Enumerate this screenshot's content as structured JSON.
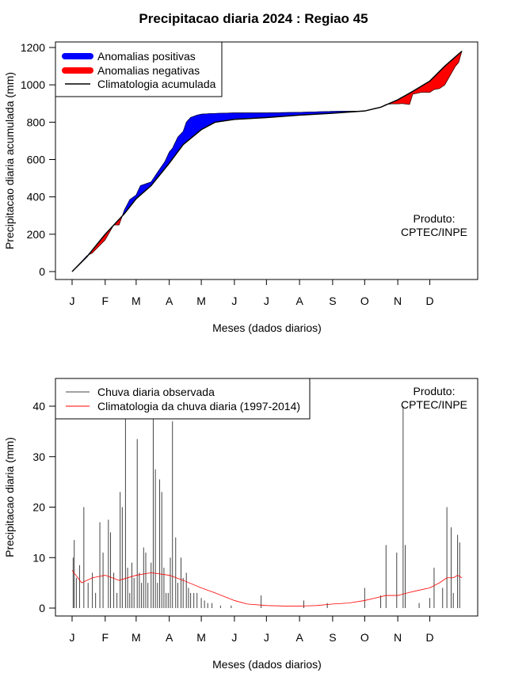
{
  "title": "Precipitacao diaria 2024 : Regiao 45",
  "chart_data": [
    {
      "type": "area",
      "ylabel": "Precipitacao diaria acumulada (mm)",
      "xlabel": "Meses (dados diarios)",
      "ylim": [
        0,
        1200
      ],
      "yticks": [
        0,
        200,
        400,
        600,
        800,
        1000,
        1200
      ],
      "xlim": [
        1,
        366
      ],
      "month_ticks": [
        "J",
        "F",
        "M",
        "A",
        "M",
        "J",
        "J",
        "A",
        "S",
        "O",
        "N",
        "D"
      ],
      "month_days": [
        1,
        32,
        61,
        92,
        122,
        153,
        183,
        214,
        245,
        275,
        306,
        336
      ],
      "annotation": [
        "Produto:",
        "CPTEC/INPE"
      ],
      "legend": {
        "placement": "top-left",
        "entries": [
          {
            "label": "Anomalias positivas",
            "color": "#0000ff"
          },
          {
            "label": "Anomalias negativas",
            "color": "#ff0000"
          },
          {
            "label": "Climatologia acumulada",
            "color": "#000000"
          }
        ]
      },
      "colors": {
        "positive": "#0000ff",
        "negative": "#ff0000",
        "line": "#000000"
      },
      "climatology": {
        "x": [
          1,
          15,
          32,
          50,
          61,
          75,
          92,
          105,
          122,
          135,
          153,
          183,
          214,
          245,
          275,
          290,
          306,
          320,
          336,
          350,
          366
        ],
        "y": [
          0,
          80,
          200,
          310,
          390,
          460,
          580,
          680,
          760,
          800,
          815,
          825,
          838,
          848,
          860,
          880,
          920,
          965,
          1020,
          1100,
          1180
        ]
      },
      "observed": {
        "x": [
          1,
          15,
          20,
          32,
          40,
          45,
          50,
          55,
          61,
          65,
          70,
          75,
          82,
          88,
          92,
          95,
          100,
          105,
          108,
          112,
          118,
          122,
          130,
          140,
          153,
          183,
          214,
          245,
          275,
          285,
          290,
          295,
          300,
          306,
          310,
          317,
          320,
          328,
          336,
          340,
          345,
          350,
          355,
          360,
          363,
          366
        ],
        "y": [
          0,
          85,
          100,
          170,
          250,
          250,
          330,
          385,
          410,
          460,
          470,
          480,
          540,
          590,
          640,
          660,
          720,
          750,
          800,
          825,
          838,
          843,
          846,
          848,
          850,
          850,
          853,
          858,
          860,
          875,
          880,
          895,
          898,
          898,
          900,
          895,
          950,
          960,
          960,
          975,
          980,
          1000,
          1050,
          1100,
          1120,
          1180
        ]
      }
    },
    {
      "type": "bar",
      "ylabel": "Precipitacao diaria (mm)",
      "xlabel": "Meses (dados diarios)",
      "ylim": [
        0,
        45
      ],
      "yticks": [
        0,
        10,
        20,
        30,
        40
      ],
      "xlim": [
        1,
        366
      ],
      "month_ticks": [
        "J",
        "F",
        "M",
        "A",
        "M",
        "J",
        "J",
        "A",
        "S",
        "O",
        "N",
        "D"
      ],
      "month_days": [
        1,
        32,
        61,
        92,
        122,
        153,
        183,
        214,
        245,
        275,
        306,
        336
      ],
      "annotation": [
        "Produto:",
        "CPTEC/INPE"
      ],
      "legend": {
        "placement": "top-left",
        "entries": [
          {
            "label": "Chuva diaria observada",
            "color": "#444444"
          },
          {
            "label": "Climatologia da chuva diaria (1997-2014)",
            "color": "#ff0000"
          }
        ]
      },
      "observed_bars": {
        "x": [
          2,
          3,
          5,
          8,
          12,
          16,
          20,
          23,
          27,
          30,
          35,
          37,
          40,
          43,
          46,
          48,
          51,
          53,
          55,
          57,
          59,
          62,
          64,
          66,
          68,
          70,
          72,
          75,
          77,
          79,
          81,
          83,
          85,
          87,
          89,
          91,
          93,
          95,
          98,
          100,
          103,
          105,
          108,
          110,
          112,
          115,
          118,
          122,
          125,
          128,
          132,
          140,
          150,
          178,
          218,
          240,
          275,
          290,
          295,
          305,
          311,
          313,
          326,
          336,
          340,
          348,
          352,
          356,
          358,
          362,
          364
        ],
        "values": [
          10,
          13.5,
          6,
          8.5,
          20,
          5,
          7,
          3,
          17,
          11,
          17.5,
          15,
          7,
          3,
          23,
          20,
          37.5,
          8,
          3,
          9,
          6,
          33.5,
          7,
          5,
          12,
          11,
          5,
          9,
          37.5,
          27.5,
          5,
          25.5,
          23,
          8,
          3,
          3,
          10,
          37,
          14,
          5,
          10,
          6,
          7,
          4,
          3,
          3,
          3,
          2,
          1.5,
          1,
          1,
          0.5,
          0.5,
          2.5,
          1.5,
          1,
          4,
          2.5,
          12.5,
          11,
          40,
          12.5,
          1,
          2,
          8,
          4,
          20,
          16,
          3,
          14.5,
          13
        ]
      },
      "climatology_daily": {
        "x": [
          1,
          10,
          20,
          32,
          45,
          61,
          75,
          92,
          105,
          122,
          135,
          153,
          165,
          183,
          200,
          214,
          230,
          245,
          260,
          275,
          285,
          295,
          306,
          315,
          325,
          336,
          345,
          352,
          358,
          362,
          366
        ],
        "y": [
          7.5,
          5,
          6,
          6.5,
          5.5,
          6.5,
          7,
          6.5,
          5.5,
          4,
          3,
          1.5,
          0.8,
          0.5,
          0.4,
          0.4,
          0.5,
          0.8,
          1,
          1.5,
          2,
          2.5,
          2.5,
          3,
          3.5,
          4,
          5,
          6,
          6,
          6.5,
          6
        ]
      }
    }
  ]
}
